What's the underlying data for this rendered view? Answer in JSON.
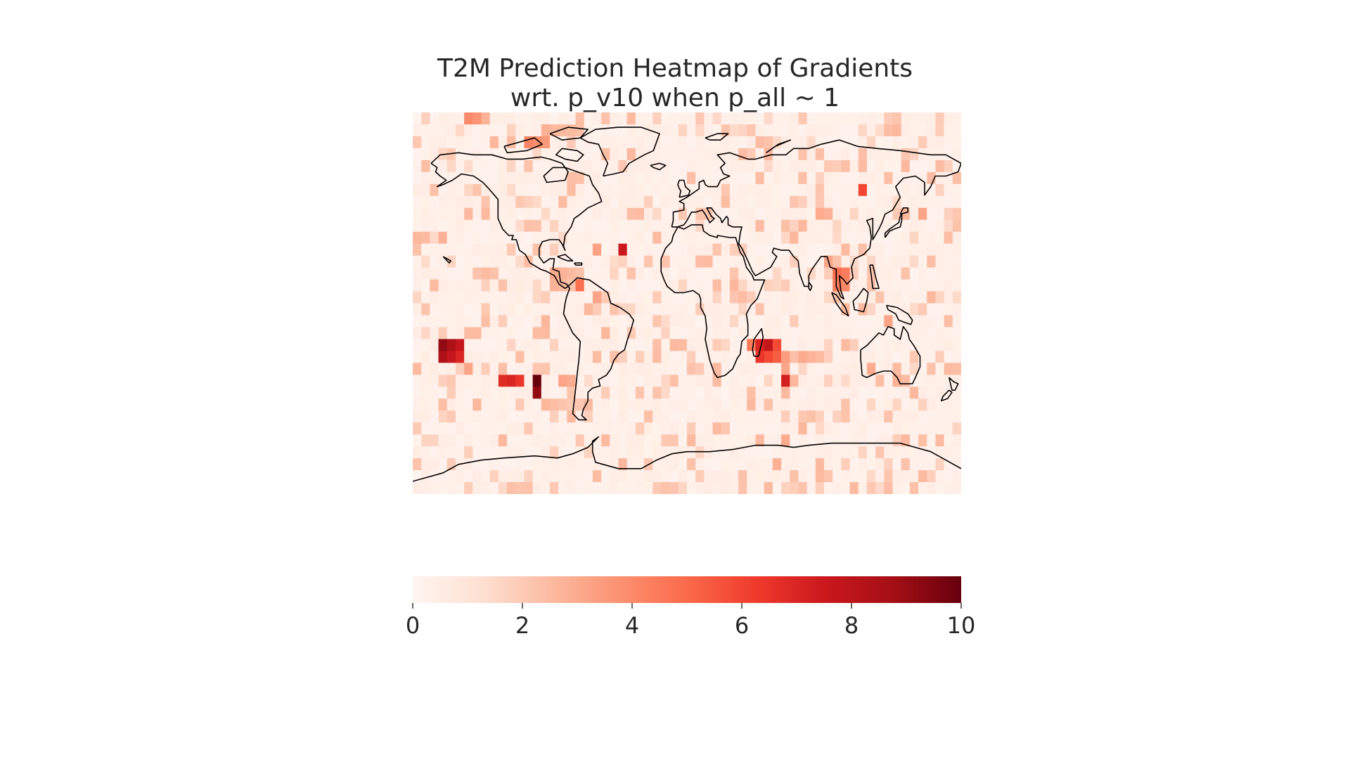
{
  "chart_data": {
    "type": "heatmap",
    "title": "T2M Prediction Heatmap of Gradients\nwrt. p_v10 when p_all ~ 1",
    "title_lines": [
      "T2M Prediction Heatmap of Gradients",
      "wrt. p_v10 when p_all ~ 1"
    ],
    "colormap": "Reds",
    "value_range": [
      0,
      10
    ],
    "colorbar": {
      "orientation": "horizontal",
      "placement": "bottom",
      "ticks": [
        0,
        2,
        4,
        6,
        8,
        10
      ],
      "tick_labels": [
        "0",
        "2",
        "4",
        "6",
        "8",
        "10"
      ]
    },
    "grid": {
      "columns": 64,
      "rows": 32,
      "lon_range": [
        -180,
        180
      ],
      "lat_range": [
        -90,
        90
      ]
    },
    "background_value": 0.35,
    "hotspots": [
      {
        "lon": -158,
        "lat": -20,
        "value": 9.2,
        "w": 3,
        "h": 2
      },
      {
        "lon": -100,
        "lat": -35,
        "value": 10.0,
        "w": 1,
        "h": 2
      },
      {
        "lon": -118,
        "lat": -35,
        "value": 7.0,
        "w": 2,
        "h": 1
      },
      {
        "lon": -123,
        "lat": -35,
        "value": 6.8,
        "w": 1,
        "h": 1
      },
      {
        "lon": -152,
        "lat": -25,
        "value": 4.2,
        "w": 2,
        "h": 1
      },
      {
        "lon": -142,
        "lat": -30,
        "value": 3.2,
        "w": 1,
        "h": 1
      },
      {
        "lon": -95,
        "lat": -45,
        "value": 2.6,
        "w": 4,
        "h": 1
      },
      {
        "lon": -83,
        "lat": -38,
        "value": 3.2,
        "w": 2,
        "h": 1
      },
      {
        "lon": -42,
        "lat": 23,
        "value": 7.5,
        "w": 1,
        "h": 1
      },
      {
        "lon": -58,
        "lat": 23,
        "value": 3.3,
        "w": 1,
        "h": 1
      },
      {
        "lon": -85,
        "lat": 15,
        "value": 3.0,
        "w": 3,
        "h": 2
      },
      {
        "lon": -73,
        "lat": 10,
        "value": 4.8,
        "w": 1,
        "h": 1
      },
      {
        "lon": -60,
        "lat": 5,
        "value": 3.2,
        "w": 1,
        "h": 1
      },
      {
        "lon": -65,
        "lat": 0,
        "value": 2.6,
        "w": 1,
        "h": 1
      },
      {
        "lon": -145,
        "lat": 86,
        "value": 4.0,
        "w": 2,
        "h": 1
      },
      {
        "lon": -138,
        "lat": 86,
        "value": 3.0,
        "w": 2,
        "h": 1
      },
      {
        "lon": -103,
        "lat": 75,
        "value": 4.2,
        "w": 3,
        "h": 1
      },
      {
        "lon": -95,
        "lat": 80,
        "value": 2.8,
        "w": 2,
        "h": 1
      },
      {
        "lon": -175,
        "lat": 30,
        "value": 2.6,
        "w": 1,
        "h": 1
      },
      {
        "lon": -163,
        "lat": 30,
        "value": 2.8,
        "w": 1,
        "h": 1
      },
      {
        "lon": 50,
        "lat": -20,
        "value": 7.0,
        "w": 3,
        "h": 2
      },
      {
        "lon": 56,
        "lat": -22,
        "value": 7.8,
        "w": 1,
        "h": 1
      },
      {
        "lon": 40,
        "lat": -20,
        "value": 4.5,
        "w": 1,
        "h": 1
      },
      {
        "lon": 65,
        "lat": -35,
        "value": 7.2,
        "w": 1,
        "h": 1
      },
      {
        "lon": 65,
        "lat": -28,
        "value": 3.4,
        "w": 1,
        "h": 2
      },
      {
        "lon": 78,
        "lat": -25,
        "value": 3.0,
        "w": 3,
        "h": 1
      },
      {
        "lon": 100,
        "lat": 12,
        "value": 4.8,
        "w": 2,
        "h": 2
      },
      {
        "lon": 95,
        "lat": 18,
        "value": 3.2,
        "w": 1,
        "h": 1
      },
      {
        "lon": 115,
        "lat": 52,
        "value": 6.0,
        "w": 1,
        "h": 1
      },
      {
        "lon": 85,
        "lat": 40,
        "value": 3.0,
        "w": 2,
        "h": 1
      },
      {
        "lon": 70,
        "lat": 30,
        "value": 2.6,
        "w": 1,
        "h": 1
      },
      {
        "lon": 145,
        "lat": 40,
        "value": 2.6,
        "w": 1,
        "h": 1
      },
      {
        "lon": 155,
        "lat": 40,
        "value": 3.2,
        "w": 1,
        "h": 1
      },
      {
        "lon": 160,
        "lat": 5,
        "value": 2.6,
        "w": 1,
        "h": 1
      },
      {
        "lon": 130,
        "lat": -10,
        "value": 3.2,
        "w": 1,
        "h": 1
      },
      {
        "lon": 120,
        "lat": -30,
        "value": 3.0,
        "w": 1,
        "h": 1
      },
      {
        "lon": 135,
        "lat": -35,
        "value": 2.8,
        "w": 1,
        "h": 1
      },
      {
        "lon": 150,
        "lat": -40,
        "value": 2.6,
        "w": 1,
        "h": 1
      },
      {
        "lon": 65,
        "lat": -62,
        "value": 3.0,
        "w": 1,
        "h": 1
      },
      {
        "lon": 60,
        "lat": -75,
        "value": 2.8,
        "w": 1,
        "h": 1
      },
      {
        "lon": 85,
        "lat": -75,
        "value": 2.5,
        "w": 1,
        "h": 1
      },
      {
        "lon": -163,
        "lat": -50,
        "value": 2.4,
        "w": 1,
        "h": 1
      },
      {
        "lon": -140,
        "lat": -48,
        "value": 2.6,
        "w": 1,
        "h": 1
      },
      {
        "lon": -178,
        "lat": -78,
        "value": 2.2,
        "w": 1,
        "h": 1
      },
      {
        "lon": 0,
        "lat": 60,
        "value": 2.4,
        "w": 1,
        "h": 1
      },
      {
        "lon": 8,
        "lat": 40,
        "value": 2.2,
        "w": 1,
        "h": 1
      },
      {
        "lon": -35,
        "lat": 45,
        "value": 2.4,
        "w": 1,
        "h": 1
      },
      {
        "lon": 170,
        "lat": 30,
        "value": 2.4,
        "w": 1,
        "h": 1
      },
      {
        "lon": -15,
        "lat": 20,
        "value": 2.2,
        "w": 1,
        "h": 1
      },
      {
        "lon": 20,
        "lat": -60,
        "value": 2.0,
        "w": 1,
        "h": 1
      }
    ]
  }
}
